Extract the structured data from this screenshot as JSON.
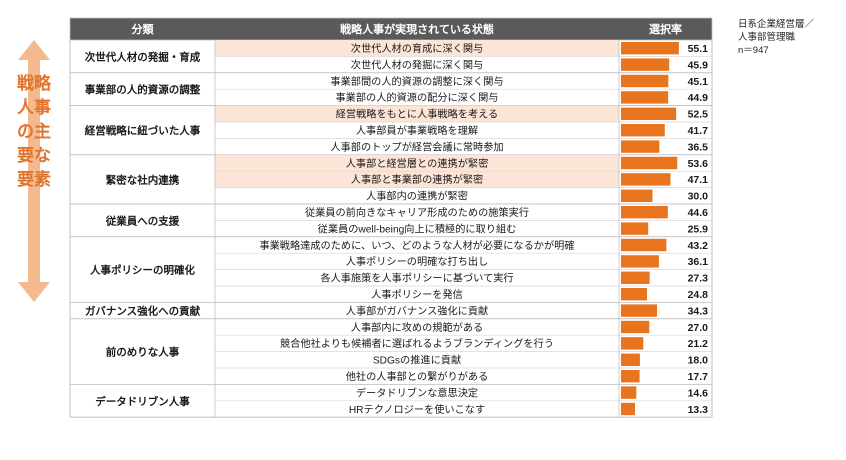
{
  "side_label": "戦略人事の主要な要素",
  "note": [
    "日系企業経営層／",
    "人事部管理職",
    "n＝947"
  ],
  "colors": {
    "header": "#5a5a5a",
    "highlight": "#fce4d6",
    "bar": "#e8741e",
    "border": "#bfbfbf",
    "arrow": "#f5b98f",
    "side_text": "#e0742c"
  },
  "chart_data": {
    "type": "bar",
    "columns": [
      "分類",
      "戦略人事が実現されている状態",
      "選択率"
    ],
    "groups": [
      {
        "name": "次世代人材の発掘・育成",
        "items": [
          {
            "label": "次世代人材の育成に深く関与",
            "value": 55.1,
            "highlight": true
          },
          {
            "label": "次世代人材の発掘に深く関与",
            "value": 45.9
          }
        ]
      },
      {
        "name": "事業部の人的資源の調整",
        "items": [
          {
            "label": "事業部間の人的資源の調整に深く関与",
            "value": 45.1
          },
          {
            "label": "事業部の人的資源の配分に深く関与",
            "value": 44.9
          }
        ]
      },
      {
        "name": "経営戦略に紐づいた人事",
        "items": [
          {
            "label": "経営戦略をもとに人事戦略を考える",
            "value": 52.5,
            "highlight": true
          },
          {
            "label": "人事部員が事業戦略を理解",
            "value": 41.7
          },
          {
            "label": "人事部のトップが経営会議に常時参加",
            "value": 36.5
          }
        ]
      },
      {
        "name": "緊密な社内連携",
        "items": [
          {
            "label": "人事部と経営層との連携が緊密",
            "value": 53.6,
            "highlight": true
          },
          {
            "label": "人事部と事業部の連携が緊密",
            "value": 47.1,
            "highlight": true
          },
          {
            "label": "人事部内の連携が緊密",
            "value": 30.0
          }
        ]
      },
      {
        "name": "従業員への支援",
        "items": [
          {
            "label": "従業員の前向きなキャリア形成のための施策実行",
            "value": 44.6
          },
          {
            "label": "従業員のwell-being向上に積極的に取り組む",
            "value": 25.9
          }
        ]
      },
      {
        "name": "人事ポリシーの明確化",
        "items": [
          {
            "label": "事業戦略達成のために、いつ、どのような人材が必要になるかが明確",
            "value": 43.2
          },
          {
            "label": "人事ポリシーの明確な打ち出し",
            "value": 36.1
          },
          {
            "label": "各人事施策を人事ポリシーに基づいて実行",
            "value": 27.3
          },
          {
            "label": "人事ポリシーを発信",
            "value": 24.8
          }
        ]
      },
      {
        "name": "ガバナンス強化への貢献",
        "items": [
          {
            "label": "人事部がガバナンス強化に貢献",
            "value": 34.3
          }
        ]
      },
      {
        "name": "前のめりな人事",
        "items": [
          {
            "label": "人事部内に攻めの規範がある",
            "value": 27.0
          },
          {
            "label": "競合他社よりも候補者に選ばれるようブランディングを行う",
            "value": 21.2
          },
          {
            "label": "SDGsの推進に貢献",
            "value": 18.0
          },
          {
            "label": "他社の人事部との繋がりがある",
            "value": 17.7
          }
        ]
      },
      {
        "name": "データドリブン人事",
        "items": [
          {
            "label": "データドリブンな意思決定",
            "value": 14.6
          },
          {
            "label": "HRテクノロジーを使いこなす",
            "value": 13.3
          }
        ]
      }
    ],
    "xlim": [
      0,
      60
    ]
  }
}
